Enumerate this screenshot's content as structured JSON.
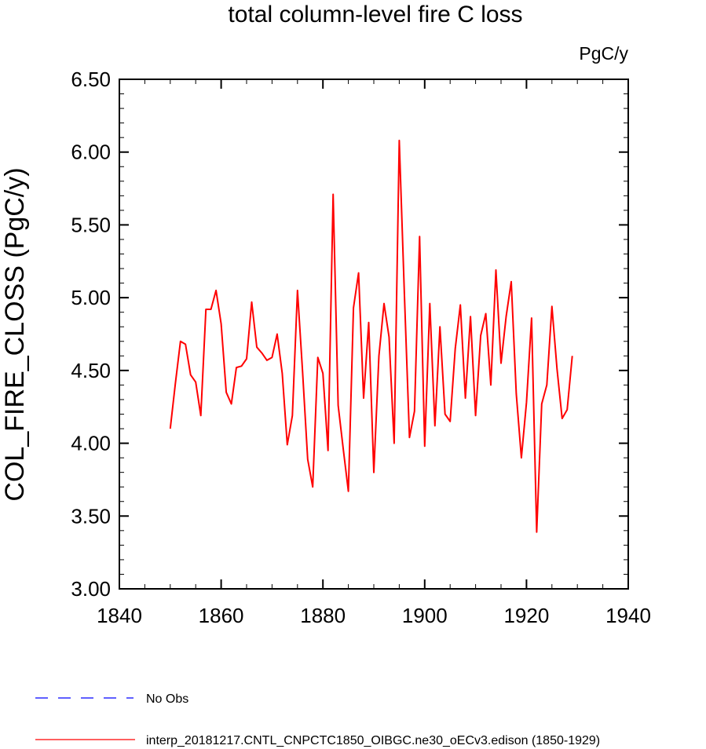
{
  "chart_data": {
    "type": "line",
    "title": "total column-level fire C loss",
    "units": "PgC/y",
    "xlabel": "",
    "ylabel": "COL_FIRE_CLOSS  (PgC/y)",
    "xlim": [
      1840,
      1940
    ],
    "ylim": [
      3.0,
      6.5
    ],
    "xticks": [
      1840,
      1860,
      1880,
      1900,
      1920,
      1940
    ],
    "yticks": [
      3.0,
      3.5,
      4.0,
      4.5,
      5.0,
      5.5,
      6.0,
      6.5
    ],
    "ytick_labels": [
      "3.00",
      "3.50",
      "4.00",
      "4.50",
      "5.00",
      "5.50",
      "6.00",
      "6.50"
    ],
    "grid": false,
    "series": [
      {
        "name": "interp_20181217.CNTL_CNPCTC1850_OIBGC.ne30_oECv3.edison (1850-1929)",
        "color": "#ff0000",
        "style": "solid",
        "x": [
          1850,
          1851,
          1852,
          1853,
          1854,
          1855,
          1856,
          1857,
          1858,
          1859,
          1860,
          1861,
          1862,
          1863,
          1864,
          1865,
          1866,
          1867,
          1868,
          1869,
          1870,
          1871,
          1872,
          1873,
          1874,
          1875,
          1876,
          1877,
          1878,
          1879,
          1880,
          1881,
          1882,
          1883,
          1884,
          1885,
          1886,
          1887,
          1888,
          1889,
          1890,
          1891,
          1892,
          1893,
          1894,
          1895,
          1896,
          1897,
          1898,
          1899,
          1900,
          1901,
          1902,
          1903,
          1904,
          1905,
          1906,
          1907,
          1908,
          1909,
          1910,
          1911,
          1912,
          1913,
          1914,
          1915,
          1916,
          1917,
          1918,
          1919,
          1920,
          1921,
          1922,
          1923,
          1924,
          1925,
          1926,
          1927,
          1928,
          1929
        ],
        "values": [
          4.1,
          4.41,
          4.7,
          4.68,
          4.47,
          4.42,
          4.19,
          4.92,
          4.92,
          5.05,
          4.82,
          4.35,
          4.27,
          4.52,
          4.53,
          4.58,
          4.97,
          4.66,
          4.62,
          4.57,
          4.59,
          4.75,
          4.48,
          3.99,
          4.19,
          5.05,
          4.49,
          3.89,
          3.7,
          4.59,
          4.48,
          3.95,
          5.71,
          4.26,
          3.96,
          3.67,
          4.93,
          5.17,
          4.31,
          4.83,
          3.8,
          4.6,
          4.96,
          4.73,
          4.0,
          6.08,
          5.03,
          4.04,
          4.22,
          5.42,
          3.98,
          4.96,
          4.12,
          4.8,
          4.2,
          4.15,
          4.65,
          4.95,
          4.31,
          4.87,
          4.19,
          4.74,
          4.89,
          4.4,
          5.19,
          4.55,
          4.87,
          5.11,
          4.34,
          3.9,
          4.28,
          4.86,
          3.39,
          4.27,
          4.4,
          4.94,
          4.51,
          4.17,
          4.23,
          4.6
        ]
      }
    ],
    "legend": [
      {
        "label": "No Obs",
        "color": "#0000ff",
        "style": "dashed"
      },
      {
        "label": "interp_20181217.CNTL_CNPCTC1850_OIBGC.ne30_oECv3.edison (1850-1929)",
        "color": "#ff0000",
        "style": "solid"
      }
    ]
  }
}
